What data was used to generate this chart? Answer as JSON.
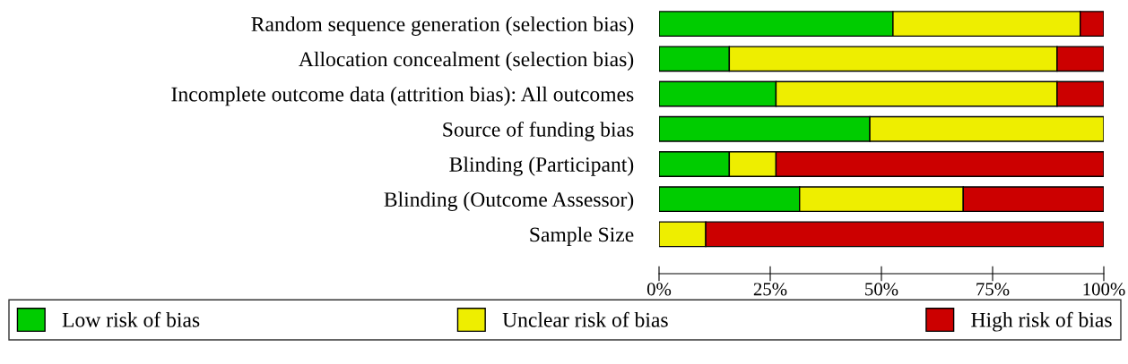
{
  "chart_data": {
    "type": "bar",
    "orientation": "horizontal",
    "stacked": true,
    "categories": [
      "Random sequence generation (selection bias)",
      "Allocation concealment (selection bias)",
      "Incomplete outcome data (attrition bias): All outcomes",
      "Source of funding bias",
      "Blinding (Participant)",
      "Blinding (Outcome Assessor)",
      "Sample Size"
    ],
    "series": [
      {
        "name": "Low risk of bias",
        "color": "#00cc00",
        "values": [
          52.6,
          15.8,
          26.3,
          47.4,
          15.8,
          31.6,
          0
        ]
      },
      {
        "name": "Unclear risk of bias",
        "color": "#eeee00",
        "values": [
          42.1,
          73.7,
          63.2,
          52.6,
          10.5,
          36.8,
          10.5
        ]
      },
      {
        "name": "High risk of bias",
        "color": "#cc0000",
        "values": [
          5.3,
          10.5,
          10.5,
          0,
          73.7,
          31.6,
          89.5
        ]
      }
    ],
    "xlim": [
      0,
      100
    ],
    "xticks": [
      {
        "value": 0,
        "label": "0%"
      },
      {
        "value": 25,
        "label": "25%"
      },
      {
        "value": 50,
        "label": "50%"
      },
      {
        "value": 75,
        "label": "75%"
      },
      {
        "value": 100,
        "label": "100%"
      }
    ],
    "grid": false,
    "legend": "bottom"
  }
}
